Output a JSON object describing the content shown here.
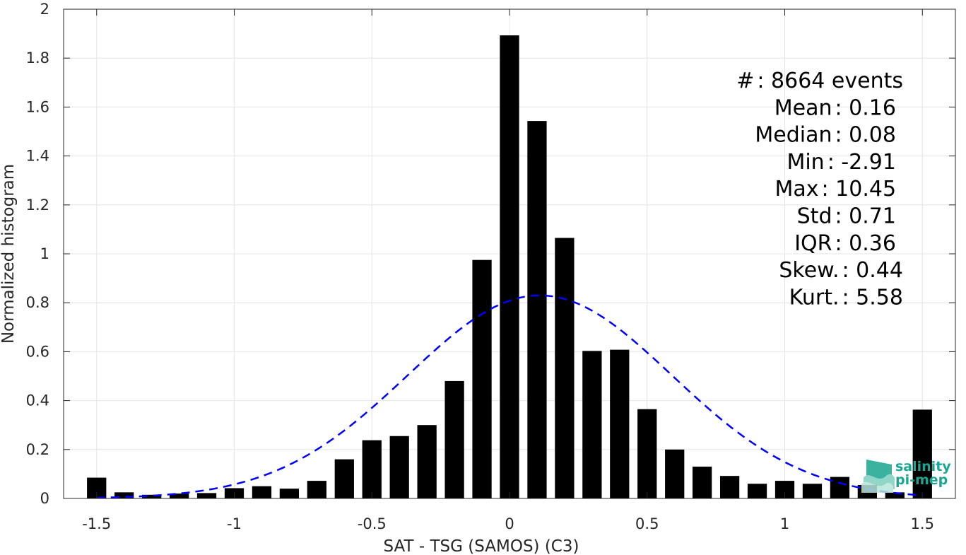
{
  "chart_data": {
    "type": "bar",
    "title": "",
    "xlabel": "SAT - TSG (SAMOS) (C3)",
    "ylabel": "Normalized histogram",
    "xlim": [
      -1.62,
      1.62
    ],
    "ylim": [
      0,
      2
    ],
    "grid": true,
    "bar_width": 0.07,
    "bar_color": "#000000",
    "x_ticks": [
      -1.5,
      -1,
      -0.5,
      0,
      0.5,
      1,
      1.5
    ],
    "x_tick_labels": [
      "-1.5",
      "-1",
      "-0.5",
      "0",
      "0.5",
      "1",
      "1.5"
    ],
    "y_ticks": [
      0,
      0.2,
      0.4,
      0.6,
      0.8,
      1,
      1.2,
      1.4,
      1.6,
      1.8,
      2
    ],
    "y_tick_labels": [
      "0",
      "0.2",
      "0.4",
      "0.6",
      "0.8",
      "1",
      "1.2",
      "1.4",
      "1.6",
      "1.8",
      "2"
    ],
    "bars": {
      "x": [
        -1.5,
        -1.4,
        -1.3,
        -1.2,
        -1.1,
        -1.0,
        -0.9,
        -0.8,
        -0.7,
        -0.6,
        -0.5,
        -0.4,
        -0.3,
        -0.2,
        -0.1,
        0.0,
        0.1,
        0.2,
        0.3,
        0.4,
        0.5,
        0.6,
        0.7,
        0.8,
        0.9,
        1.0,
        1.1,
        1.2,
        1.3,
        1.4,
        1.5
      ],
      "values": [
        0.085,
        0.025,
        0.015,
        0.02,
        0.022,
        0.042,
        0.05,
        0.04,
        0.072,
        0.16,
        0.238,
        0.255,
        0.3,
        0.48,
        0.975,
        1.893,
        1.543,
        1.065,
        0.603,
        0.608,
        0.365,
        0.2,
        0.13,
        0.092,
        0.06,
        0.072,
        0.06,
        0.088,
        0.055,
        0.025,
        0.363
      ]
    },
    "fit_curve": {
      "type": "normal",
      "mean": 0.11,
      "sigma": 0.48,
      "peak": 0.83,
      "x_range": [
        -1.5,
        1.5
      ],
      "color": "#0000ff",
      "style": "dashed"
    },
    "stats": [
      {
        "label": "#  ",
        "value": ": 8664 events"
      },
      {
        "label": "Mean ",
        "value": ": 0.16"
      },
      {
        "label": "Median ",
        "value": ": 0.08"
      },
      {
        "label": "Min ",
        "value": ": -2.91"
      },
      {
        "label": "Max ",
        "value": ": 10.45"
      },
      {
        "label": "Std ",
        "value": ": 0.71"
      },
      {
        "label": "IQR ",
        "value": ": 0.36"
      },
      {
        "label": "Skew. ",
        "value": ": 0.44"
      },
      {
        "label": "Kurt. ",
        "value": ": 5.58"
      }
    ]
  },
  "logo": {
    "line1": "salinity",
    "line2": "pi-mep",
    "color": "#1aa590"
  }
}
